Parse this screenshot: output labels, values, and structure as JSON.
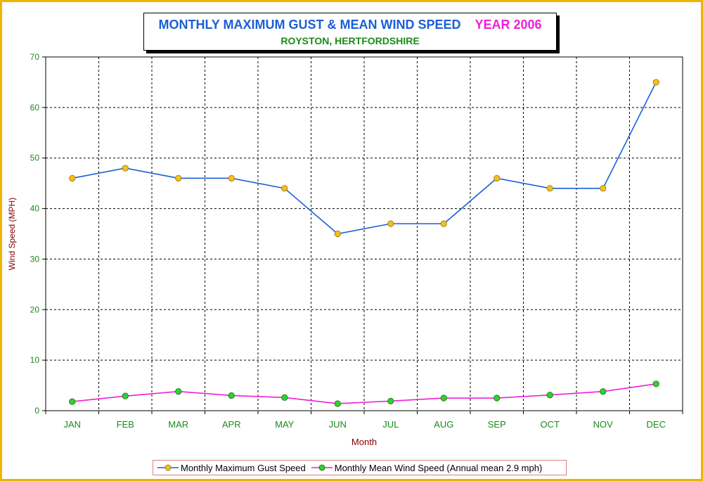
{
  "title": {
    "main": "MONTHLY MAXIMUM GUST & MEAN WIND SPEED",
    "year": "YEAR 2006",
    "subtitle": "ROYSTON, HERTFORDSHIRE"
  },
  "colors": {
    "frame": "#f0b400",
    "gust_line": "#1a5fd6",
    "gust_marker": "#f0c020",
    "mean_line": "#ee1ed8",
    "mean_marker": "#30d030",
    "axis_text": "#1a8a1a",
    "axis_label": "#800000",
    "grid": "#000000"
  },
  "chart_data": {
    "type": "line",
    "xlabel": "Month",
    "ylabel": "Wind Speed (MPH)",
    "categories": [
      "JAN",
      "FEB",
      "MAR",
      "APR",
      "MAY",
      "JUN",
      "JUL",
      "AUG",
      "SEP",
      "OCT",
      "NOV",
      "DEC"
    ],
    "ylim": [
      0,
      70
    ],
    "yticks": [
      0,
      10,
      20,
      30,
      40,
      50,
      60,
      70
    ],
    "grid": true,
    "legend_position": "bottom",
    "series": [
      {
        "name": "Monthly Maximum Gust Speed",
        "values": [
          46,
          48,
          46,
          46,
          44,
          35,
          37,
          37,
          46,
          44,
          44,
          65
        ]
      },
      {
        "name": "Monthly Mean Wind Speed (Annual mean 2.9 mph)",
        "values": [
          1.8,
          2.9,
          3.8,
          3.0,
          2.6,
          1.4,
          1.9,
          2.5,
          2.5,
          3.1,
          3.8,
          5.3
        ]
      }
    ]
  }
}
